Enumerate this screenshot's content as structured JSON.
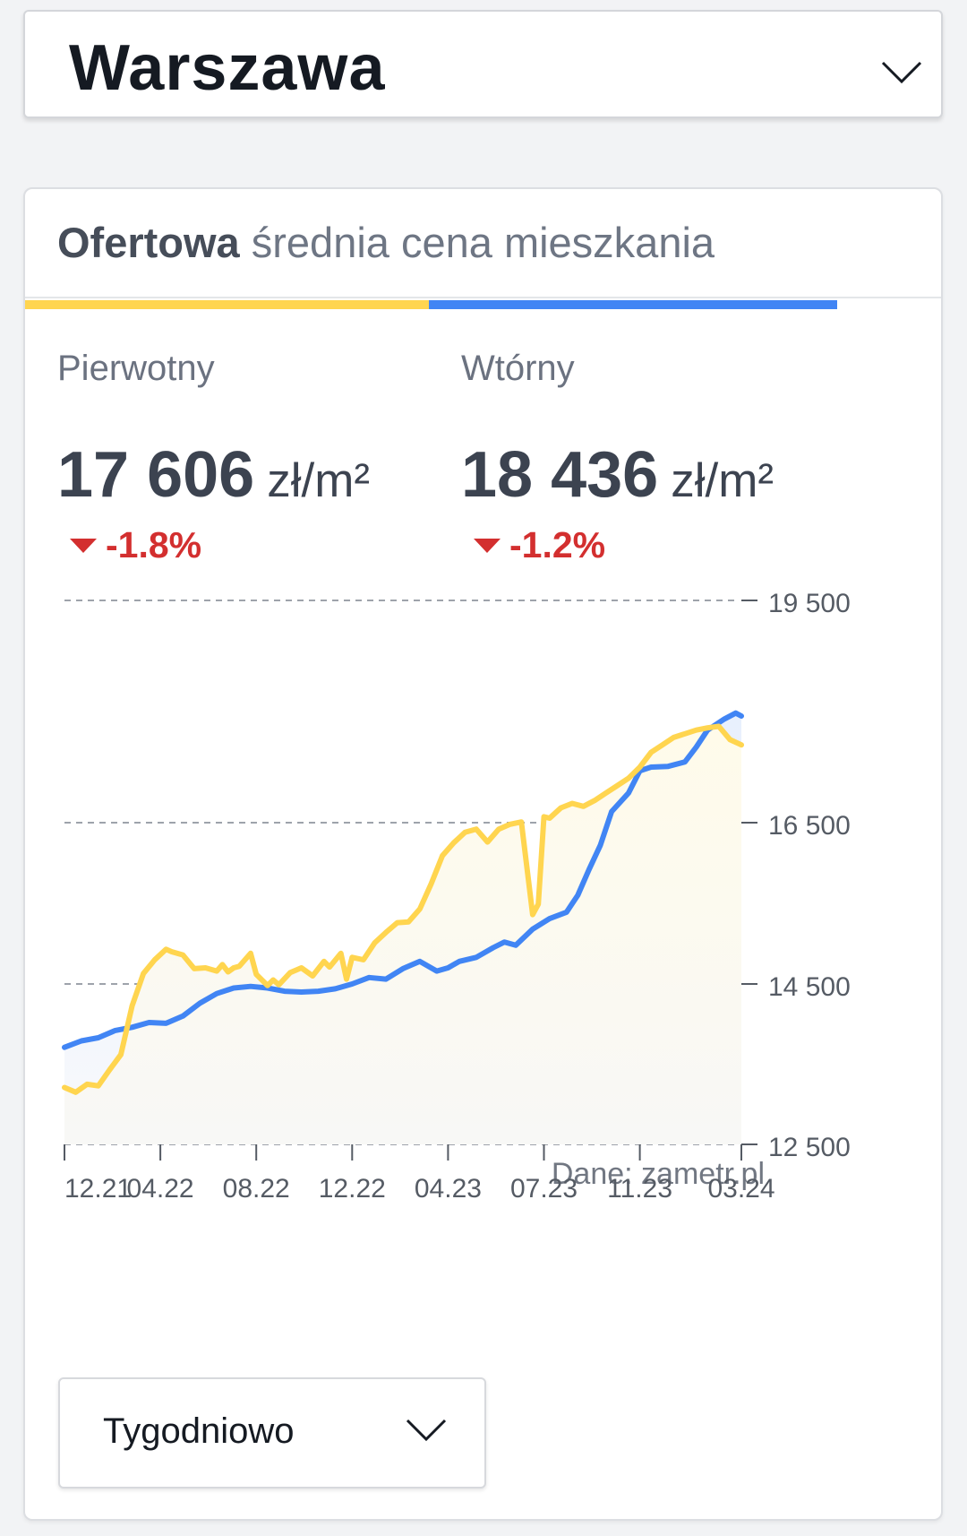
{
  "city_select": {
    "value": "Warszawa"
  },
  "card": {
    "title_bold": "Ofertowa",
    "title_rest": "średnia cena mieszkania"
  },
  "colors": {
    "primary": "#ffd54f",
    "secondary": "#4185f4",
    "negative": "#d32f2f"
  },
  "markets": {
    "primary": {
      "label": "Pierwotny",
      "price": "17 606",
      "unit": "zł/m²",
      "change": "-1.8%"
    },
    "secondary": {
      "label": "Wtórny",
      "price": "18 436",
      "unit": "zł/m²",
      "change": "-1.2%"
    }
  },
  "chart_data": {
    "type": "line",
    "source_note": "Dane: zametr.pl",
    "y_ticks": [
      12500,
      14500,
      16500,
      19500
    ],
    "y_tick_labels": [
      "12 500",
      "14 500",
      "16 500",
      "19 500"
    ],
    "ylim": [
      12500,
      19500
    ],
    "x_ticks": [
      "12.21",
      "04.22",
      "08.22",
      "12.22",
      "04.23",
      "07.23",
      "11.23",
      "03.24"
    ],
    "x_tick_t": [
      0,
      17,
      34,
      51,
      68,
      85,
      102,
      120
    ],
    "t_range": [
      0,
      120
    ],
    "y_scale_breaks": [
      12500,
      14500,
      16500,
      19500
    ],
    "grid": true,
    "series": [
      {
        "key": "secondary",
        "color": "#4185f4",
        "points": [
          [
            0,
            13710
          ],
          [
            3,
            13790
          ],
          [
            6,
            13830
          ],
          [
            9,
            13920
          ],
          [
            12,
            13960
          ],
          [
            15,
            14020
          ],
          [
            18,
            14010
          ],
          [
            21,
            14100
          ],
          [
            24,
            14260
          ],
          [
            27,
            14380
          ],
          [
            30,
            14450
          ],
          [
            33,
            14470
          ],
          [
            36,
            14450
          ],
          [
            39,
            14410
          ],
          [
            42,
            14400
          ],
          [
            45,
            14410
          ],
          [
            48,
            14440
          ],
          [
            51,
            14500
          ],
          [
            54,
            14580
          ],
          [
            57,
            14560
          ],
          [
            60,
            14690
          ],
          [
            63,
            14780
          ],
          [
            66,
            14660
          ],
          [
            68,
            14700
          ],
          [
            70,
            14780
          ],
          [
            73,
            14830
          ],
          [
            76,
            14950
          ],
          [
            78,
            15020
          ],
          [
            80,
            14980
          ],
          [
            83,
            15180
          ],
          [
            86,
            15310
          ],
          [
            89,
            15390
          ],
          [
            91,
            15600
          ],
          [
            93,
            15920
          ],
          [
            95,
            16220
          ],
          [
            97,
            16650
          ],
          [
            100,
            16900
          ],
          [
            102,
            17200
          ],
          [
            104,
            17250
          ],
          [
            107,
            17260
          ],
          [
            110,
            17320
          ],
          [
            112,
            17520
          ],
          [
            114,
            17750
          ],
          [
            117,
            17900
          ],
          [
            119,
            17980
          ],
          [
            120,
            17940
          ]
        ]
      },
      {
        "key": "primary",
        "color": "#ffd54f",
        "points": [
          [
            0,
            13210
          ],
          [
            2,
            13150
          ],
          [
            4,
            13250
          ],
          [
            6,
            13230
          ],
          [
            8,
            13430
          ],
          [
            10,
            13620
          ],
          [
            12,
            14230
          ],
          [
            14,
            14630
          ],
          [
            16,
            14800
          ],
          [
            18,
            14930
          ],
          [
            19,
            14900
          ],
          [
            21,
            14860
          ],
          [
            23,
            14690
          ],
          [
            25,
            14700
          ],
          [
            27,
            14660
          ],
          [
            28,
            14740
          ],
          [
            29,
            14650
          ],
          [
            30,
            14700
          ],
          [
            31,
            14720
          ],
          [
            33,
            14880
          ],
          [
            34,
            14620
          ],
          [
            36,
            14480
          ],
          [
            37,
            14550
          ],
          [
            38,
            14490
          ],
          [
            40,
            14640
          ],
          [
            42,
            14700
          ],
          [
            44,
            14600
          ],
          [
            46,
            14780
          ],
          [
            47,
            14710
          ],
          [
            49,
            14880
          ],
          [
            50,
            14560
          ],
          [
            51,
            14830
          ],
          [
            53,
            14800
          ],
          [
            55,
            15010
          ],
          [
            57,
            15140
          ],
          [
            59,
            15260
          ],
          [
            61,
            15270
          ],
          [
            63,
            15430
          ],
          [
            65,
            15740
          ],
          [
            67,
            16090
          ],
          [
            69,
            16250
          ],
          [
            71,
            16380
          ],
          [
            73,
            16420
          ],
          [
            75,
            16260
          ],
          [
            77,
            16420
          ],
          [
            79,
            16480
          ],
          [
            81,
            16510
          ],
          [
            83,
            15360
          ],
          [
            84,
            15490
          ],
          [
            85,
            16580
          ],
          [
            86,
            16560
          ],
          [
            88,
            16700
          ],
          [
            90,
            16760
          ],
          [
            92,
            16720
          ],
          [
            94,
            16800
          ],
          [
            96,
            16900
          ],
          [
            98,
            17000
          ],
          [
            100,
            17100
          ],
          [
            102,
            17250
          ],
          [
            104,
            17450
          ],
          [
            106,
            17550
          ],
          [
            108,
            17650
          ],
          [
            110,
            17700
          ],
          [
            112,
            17750
          ],
          [
            114,
            17780
          ],
          [
            116,
            17800
          ],
          [
            118,
            17620
          ],
          [
            120,
            17550
          ]
        ]
      }
    ]
  },
  "period_select": {
    "value": "Tygodniowo"
  }
}
